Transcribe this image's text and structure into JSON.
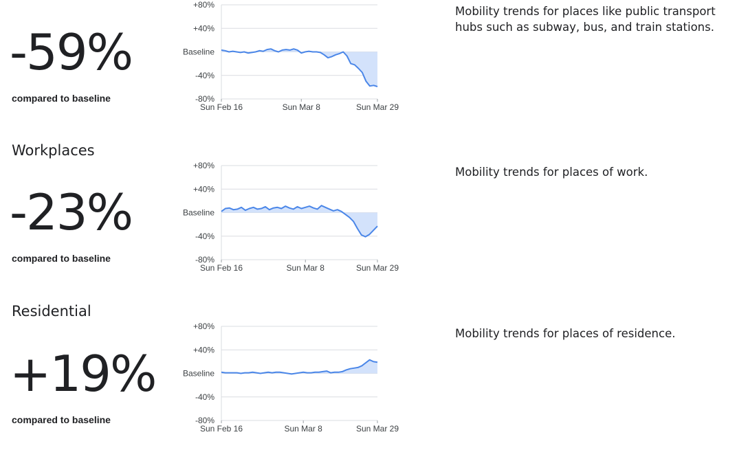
{
  "sections": [
    {
      "title": "",
      "value": "-59%",
      "sub": "compared to baseline",
      "desc": "Mobility trends for places like public transport hubs such as subway, bus, and train stations."
    },
    {
      "title": "Workplaces",
      "value": "-23%",
      "sub": "compared to baseline",
      "desc": "Mobility trends for places of work."
    },
    {
      "title": "Residential",
      "value": "+19%",
      "sub": "compared to baseline",
      "desc": "Mobility trends for places of residence."
    }
  ],
  "colors": {
    "line": "#4a86e8",
    "fill": "#d3e2fb",
    "grid": "#dadce0",
    "text": "#202124"
  },
  "chart_data": [
    {
      "type": "area",
      "series": [
        {
          "values": [
            3,
            2,
            0,
            1,
            0,
            -1,
            0,
            -2,
            -1,
            0,
            2,
            1,
            4,
            5,
            2,
            0,
            3,
            4,
            3,
            5,
            3,
            -2,
            0,
            1,
            0,
            0,
            -1,
            -5,
            -10,
            -8,
            -5,
            -3,
            0,
            -7,
            -20,
            -22,
            -28,
            -35,
            -50,
            -58,
            -57,
            -59
          ]
        }
      ],
      "y_ticks": [
        "+80%",
        "+40%",
        "Baseline",
        "-40%",
        "-80%"
      ],
      "y_values": [
        80,
        40,
        0,
        -40,
        -80
      ],
      "x_ticks": [
        "Sun Feb 16",
        "Sun Mar 8",
        "Sun Mar 29"
      ],
      "x_tick_index": [
        0,
        21,
        41
      ],
      "ylim": [
        -80,
        80
      ]
    },
    {
      "type": "area",
      "series": [
        {
          "values": [
            2,
            7,
            8,
            5,
            6,
            9,
            4,
            7,
            9,
            6,
            7,
            10,
            5,
            8,
            9,
            7,
            11,
            8,
            6,
            10,
            7,
            9,
            11,
            8,
            6,
            12,
            9,
            6,
            3,
            5,
            2,
            -3,
            -8,
            -15,
            -27,
            -38,
            -41,
            -37,
            -30,
            -23
          ]
        }
      ],
      "y_ticks": [
        "+80%",
        "+40%",
        "Baseline",
        "-40%",
        "-80%"
      ],
      "y_values": [
        80,
        40,
        0,
        -40,
        -80
      ],
      "x_ticks": [
        "Sun Feb 16",
        "Sun Mar 8",
        "Sun Mar 29"
      ],
      "x_tick_index": [
        0,
        21,
        39
      ],
      "ylim": [
        -80,
        80
      ]
    },
    {
      "type": "area",
      "series": [
        {
          "values": [
            2,
            1,
            1,
            1,
            1,
            0,
            1,
            1,
            2,
            1,
            0,
            1,
            2,
            1,
            2,
            2,
            1,
            0,
            -1,
            0,
            1,
            2,
            1,
            1,
            2,
            2,
            3,
            4,
            1,
            2,
            2,
            3,
            6,
            8,
            9,
            10,
            13,
            18,
            23,
            20,
            19
          ]
        }
      ],
      "y_ticks": [
        "+80%",
        "+40%",
        "Baseline",
        "-40%",
        "-80%"
      ],
      "y_values": [
        80,
        40,
        0,
        -40,
        -80
      ],
      "x_ticks": [
        "Sun Feb 16",
        "Sun Mar 8",
        "Sun Mar 29"
      ],
      "x_tick_index": [
        0,
        21,
        40
      ],
      "ylim": [
        -80,
        80
      ]
    }
  ]
}
